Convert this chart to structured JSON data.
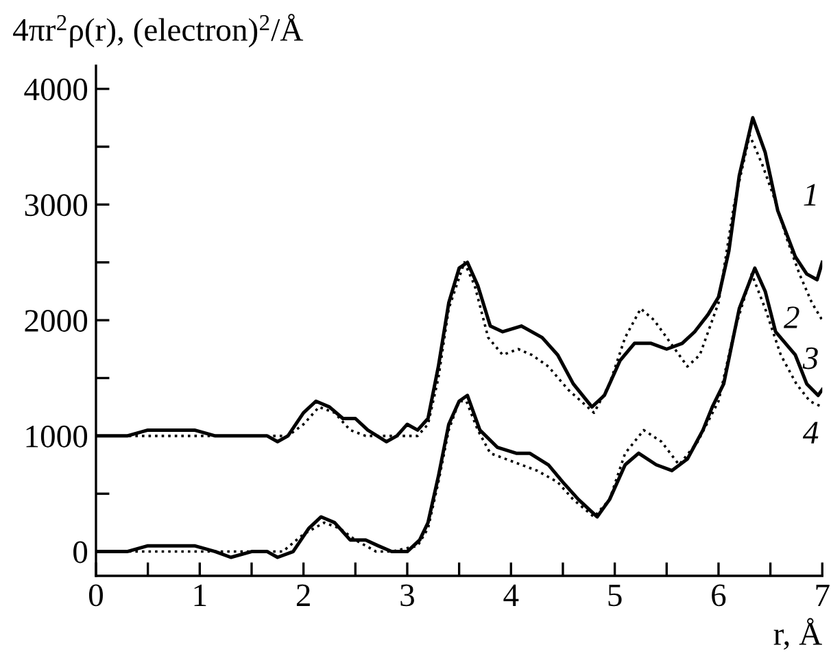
{
  "chart_data": {
    "type": "line",
    "xlabel": "r, Å",
    "ylabel": "4πr$^{2}$ρ(r), (electron)$^{2}$/Å",
    "xlim": [
      0,
      7
    ],
    "ylim": [
      -210,
      4200
    ],
    "xticks": [
      0,
      {
        "value": 0.5,
        "label": null
      },
      1,
      {
        "value": 1.5,
        "label": null
      },
      2,
      {
        "value": 2.5,
        "label": null
      },
      3,
      {
        "value": 3.5,
        "label": null
      },
      4,
      {
        "value": 4.5,
        "label": null
      },
      5,
      {
        "value": 5.5,
        "label": null
      },
      6,
      {
        "value": 6.5,
        "label": null
      },
      7
    ],
    "yticks": [
      0,
      {
        "value": 500,
        "label": null
      },
      1000,
      {
        "value": 1500,
        "label": null
      },
      2000,
      {
        "value": 2500,
        "label": null
      },
      3000,
      {
        "value": 3500,
        "label": null
      },
      4000
    ],
    "grid": false,
    "legend": false,
    "marker": "none",
    "series": [
      {
        "color": "#000000",
        "line_style": "solid",
        "x": [
          0,
          0.3,
          0.5,
          0.75,
          0.95,
          1.15,
          1.3,
          1.5,
          1.65,
          1.75,
          1.85,
          2.0,
          2.12,
          2.25,
          2.38,
          2.5,
          2.62,
          2.8,
          2.9,
          3.0,
          3.1,
          3.2,
          3.3,
          3.4,
          3.5,
          3.58,
          3.68,
          3.8,
          3.92,
          4.1,
          4.3,
          4.45,
          4.6,
          4.78,
          4.9,
          5.05,
          5.19,
          5.35,
          5.5,
          5.65,
          5.77,
          5.9,
          6.0,
          6.1,
          6.2,
          6.33,
          6.45,
          6.57,
          6.74,
          6.85,
          6.95,
          7.0
        ],
        "name": "1",
        "values": [
          1000,
          1000,
          1050,
          1050,
          1050,
          1000,
          1000,
          1000,
          1000,
          950,
          1000,
          1200,
          1300,
          1250,
          1150,
          1150,
          1050,
          950,
          1000,
          1100,
          1050,
          1150,
          1600,
          2150,
          2450,
          2500,
          2300,
          1950,
          1900,
          1950,
          1850,
          1700,
          1450,
          1250,
          1350,
          1650,
          1800,
          1800,
          1750,
          1800,
          1900,
          2050,
          2200,
          2600,
          3250,
          3750,
          3450,
          2950,
          2550,
          2400,
          2350,
          2500
        ]
      },
      {
        "color": "#000000",
        "line_style": "dotted",
        "x": [
          0,
          1.85,
          2.0,
          2.15,
          2.3,
          2.45,
          2.6,
          3.1,
          3.2,
          3.3,
          3.4,
          3.55,
          3.65,
          3.78,
          3.92,
          4.07,
          4.2,
          4.36,
          4.55,
          4.8,
          4.95,
          5.1,
          5.25,
          5.38,
          5.5,
          5.7,
          5.82,
          6.0,
          6.15,
          6.3,
          6.42,
          6.54,
          6.66,
          6.78,
          6.9,
          7.0
        ],
        "name": "2",
        "values": [
          1000,
          1000,
          1100,
          1250,
          1200,
          1050,
          1000,
          1000,
          1100,
          1500,
          2100,
          2500,
          2300,
          1850,
          1700,
          1750,
          1700,
          1600,
          1400,
          1200,
          1450,
          1850,
          2100,
          2000,
          1850,
          1600,
          1700,
          2150,
          3000,
          3600,
          3350,
          3050,
          2700,
          2400,
          2150,
          2000
        ]
      },
      {
        "color": "#000000",
        "line_style": "solid",
        "x": [
          0,
          0.3,
          0.5,
          0.7,
          0.95,
          1.15,
          1.3,
          1.5,
          1.65,
          1.75,
          1.9,
          2.05,
          2.17,
          2.3,
          2.45,
          2.6,
          2.72,
          2.85,
          3.0,
          3.12,
          3.2,
          3.3,
          3.4,
          3.5,
          3.58,
          3.7,
          3.87,
          4.05,
          4.18,
          4.36,
          4.5,
          4.65,
          4.83,
          4.95,
          5.1,
          5.23,
          5.4,
          5.55,
          5.7,
          5.85,
          5.94,
          6.05,
          6.2,
          6.35,
          6.45,
          6.55,
          6.74,
          6.85,
          6.96,
          7.0
        ],
        "name": "3",
        "values": [
          0,
          0,
          50,
          50,
          50,
          0,
          -50,
          0,
          0,
          -50,
          0,
          200,
          300,
          250,
          100,
          100,
          50,
          0,
          0,
          100,
          250,
          650,
          1100,
          1300,
          1350,
          1050,
          900,
          850,
          850,
          750,
          600,
          450,
          300,
          450,
          750,
          850,
          750,
          700,
          800,
          1050,
          1250,
          1450,
          2100,
          2450,
          2250,
          1900,
          1700,
          1450,
          1350,
          1400
        ]
      },
      {
        "color": "#000000",
        "line_style": "dotted",
        "x": [
          0,
          1.8,
          2.0,
          2.2,
          2.35,
          2.5,
          2.7,
          2.85,
          3.1,
          3.2,
          3.3,
          3.4,
          3.5,
          3.57,
          3.68,
          3.8,
          3.95,
          4.1,
          4.25,
          4.45,
          4.6,
          4.8,
          4.95,
          5.1,
          5.28,
          5.45,
          5.62,
          5.8,
          6.0,
          6.15,
          6.32,
          6.45,
          6.6,
          6.75,
          6.88,
          7.0
        ],
        "name": "4",
        "values": [
          0,
          0,
          150,
          250,
          200,
          100,
          0,
          0,
          50,
          200,
          600,
          1050,
          1300,
          1300,
          1050,
          850,
          800,
          750,
          700,
          600,
          450,
          300,
          450,
          850,
          1050,
          950,
          750,
          950,
          1300,
          1900,
          2400,
          2100,
          1700,
          1450,
          1300,
          1250
        ]
      }
    ]
  }
}
